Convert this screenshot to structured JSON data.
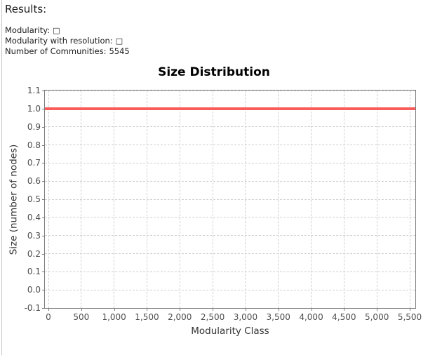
{
  "results": {
    "heading": "Results:",
    "lines": [
      {
        "label": "Modularity:",
        "value": "□"
      },
      {
        "label": "Modularity with resolution:",
        "value": "□"
      },
      {
        "label": "Number of Communities:",
        "value": "5545"
      }
    ]
  },
  "chart_data": {
    "type": "line",
    "title": "Size Distribution",
    "xlabel": "Modularity Class",
    "ylabel": "Size (number of nodes)",
    "xlim": [
      0,
      5500
    ],
    "ylim": [
      -0.1,
      1.1
    ],
    "x_ticks": [
      0,
      500,
      1000,
      1500,
      2000,
      2500,
      3000,
      3500,
      4000,
      4500,
      5000,
      5500
    ],
    "x_tick_labels": [
      "0",
      "500",
      "1,000",
      "1,500",
      "2,000",
      "2,500",
      "3,000",
      "3,500",
      "4,000",
      "4,500",
      "5,000",
      "5,500"
    ],
    "y_tick_labels": [
      "1.1",
      "1.0",
      "0.9",
      "0.8",
      "0.7",
      "0.6",
      "0.5",
      "0.4",
      "0.3",
      "0.2",
      "0.1",
      "0.0",
      "-0.1"
    ],
    "grid": true,
    "legend": "none",
    "series": [
      {
        "name": "Size Distribution",
        "color": "#f95d5b",
        "y_value": 1.0,
        "points": [
          [
            0,
            1.0
          ],
          [
            5544,
            1.0
          ]
        ],
        "note": "constant horizontal line at size 1 for all 5545 modularity classes, drawn edge to edge"
      }
    ]
  },
  "colors": {
    "series_red": "#f95d5b",
    "plot_border": "#7a7a7a",
    "gridline": "#cfcfcf",
    "tick_label": "#4d4d4d",
    "axis_label": "#333333",
    "text": "#1a1a1a",
    "panel_border": "#c6c6c6",
    "background": "#ffffff"
  }
}
